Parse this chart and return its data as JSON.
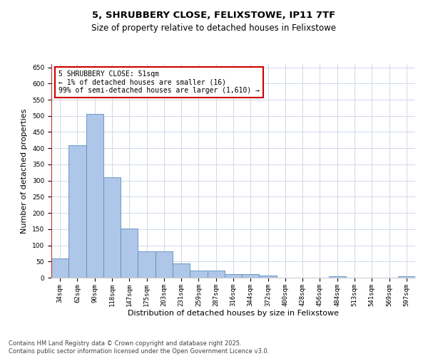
{
  "title_line1": "5, SHRUBBERY CLOSE, FELIXSTOWE, IP11 7TF",
  "title_line2": "Size of property relative to detached houses in Felixstowe",
  "xlabel": "Distribution of detached houses by size in Felixstowe",
  "ylabel": "Number of detached properties",
  "categories": [
    "34sqm",
    "62sqm",
    "90sqm",
    "118sqm",
    "147sqm",
    "175sqm",
    "203sqm",
    "231sqm",
    "259sqm",
    "287sqm",
    "316sqm",
    "344sqm",
    "372sqm",
    "400sqm",
    "428sqm",
    "456sqm",
    "484sqm",
    "513sqm",
    "541sqm",
    "569sqm",
    "597sqm"
  ],
  "values": [
    60,
    410,
    505,
    310,
    152,
    82,
    82,
    45,
    22,
    22,
    10,
    10,
    7,
    0,
    0,
    0,
    4,
    0,
    0,
    0,
    5
  ],
  "bar_color": "#aec6e8",
  "bar_edge_color": "#5a8fc0",
  "highlight_line_color": "#cc0000",
  "ylim": [
    0,
    660
  ],
  "yticks": [
    0,
    50,
    100,
    150,
    200,
    250,
    300,
    350,
    400,
    450,
    500,
    550,
    600,
    650
  ],
  "annotation_box_text": "5 SHRUBBERY CLOSE: 51sqm\n← 1% of detached houses are smaller (16)\n99% of semi-detached houses are larger (1,610) →",
  "annotation_box_color": "#cc0000",
  "annotation_box_bg": "#ffffff",
  "footer_line1": "Contains HM Land Registry data © Crown copyright and database right 2025.",
  "footer_line2": "Contains public sector information licensed under the Open Government Licence v3.0.",
  "bg_color": "#ffffff",
  "grid_color": "#d0d8e8",
  "title_fontsize": 9.5,
  "subtitle_fontsize": 8.5,
  "tick_fontsize": 6.5,
  "label_fontsize": 8,
  "annotation_fontsize": 7,
  "footer_fontsize": 6
}
